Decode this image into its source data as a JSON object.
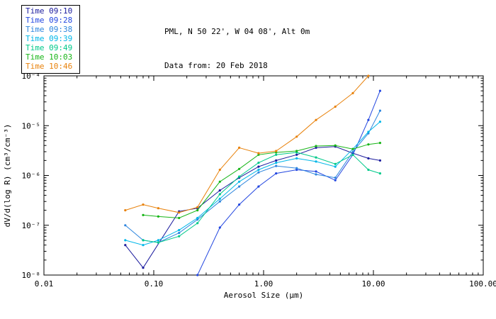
{
  "header": {
    "title_line1": "PML, N 50 22', W 04 08', Alt 0m",
    "title_line2": "Data from: 20 Feb 2018"
  },
  "chart_data": {
    "type": "line",
    "x_scale": "log",
    "y_scale": "log",
    "xlim": [
      0.01,
      100
    ],
    "ylim": [
      1e-08,
      0.0001
    ],
    "xlabel": "Aerosol Size (μm)",
    "ylabel": "dV/d(log R) (cm³/cm⁻³)",
    "x_tick_values": [
      0.01,
      0.1,
      1,
      10,
      100
    ],
    "x_tick_labels": [
      "0.01",
      "0.10",
      "1.00",
      "10.00",
      "100.00"
    ],
    "y_tick_values": [
      1e-08,
      1e-07,
      1e-06,
      1e-05,
      0.0001
    ],
    "y_tick_labels": [
      "10⁻⁸",
      "10⁻⁷",
      "10⁻⁶",
      "10⁻⁵",
      "10⁻⁴"
    ],
    "grid": false,
    "legend_position": "top-left",
    "series": [
      {
        "name": "Time 09:10",
        "color": "#1c1c9e",
        "points": [
          [
            0.055,
            4e-08
          ],
          [
            0.08,
            1.4e-08
          ],
          [
            0.17,
            1.9e-07
          ],
          [
            0.25,
            2.2e-07
          ],
          [
            0.4,
            5e-07
          ],
          [
            0.6,
            9e-07
          ],
          [
            0.9,
            1.5e-06
          ],
          [
            1.3,
            2e-06
          ],
          [
            2.0,
            2.6e-06
          ],
          [
            3.0,
            3.6e-06
          ],
          [
            4.5,
            3.8e-06
          ],
          [
            6.5,
            2.8e-06
          ],
          [
            9.0,
            2.2e-06
          ],
          [
            11.5,
            2e-06
          ]
        ]
      },
      {
        "name": "Time 09:28",
        "color": "#2347e0",
        "points": [
          [
            0.25,
            1e-08
          ],
          [
            0.4,
            9e-08
          ],
          [
            0.6,
            2.6e-07
          ],
          [
            0.9,
            6e-07
          ],
          [
            1.3,
            1.1e-06
          ],
          [
            2.0,
            1.3e-06
          ],
          [
            3.0,
            1.2e-06
          ],
          [
            4.5,
            8e-07
          ],
          [
            6.5,
            2.6e-06
          ],
          [
            9.0,
            1.3e-05
          ],
          [
            11.5,
            5e-05
          ]
        ]
      },
      {
        "name": "Time 09:38",
        "color": "#2e86de",
        "points": [
          [
            0.055,
            1e-07
          ],
          [
            0.08,
            5e-08
          ],
          [
            0.11,
            4.5e-08
          ],
          [
            0.17,
            7e-08
          ],
          [
            0.25,
            1.3e-07
          ],
          [
            0.4,
            3e-07
          ],
          [
            0.6,
            6e-07
          ],
          [
            0.9,
            1.15e-06
          ],
          [
            1.3,
            1.55e-06
          ],
          [
            2.0,
            1.4e-06
          ],
          [
            3.0,
            1.05e-06
          ],
          [
            4.5,
            9e-07
          ],
          [
            6.5,
            3e-06
          ],
          [
            9.0,
            7e-06
          ],
          [
            11.5,
            2e-05
          ]
        ]
      },
      {
        "name": "Time 09:39",
        "color": "#00b7e8",
        "points": [
          [
            0.055,
            5e-08
          ],
          [
            0.08,
            4e-08
          ],
          [
            0.11,
            5e-08
          ],
          [
            0.17,
            8e-08
          ],
          [
            0.25,
            1.4e-07
          ],
          [
            0.4,
            3.4e-07
          ],
          [
            0.6,
            7.5e-07
          ],
          [
            0.9,
            1.3e-06
          ],
          [
            1.3,
            1.8e-06
          ],
          [
            2.0,
            2.2e-06
          ],
          [
            3.0,
            1.9e-06
          ],
          [
            4.5,
            1.5e-06
          ],
          [
            6.5,
            3.4e-06
          ],
          [
            9.0,
            7.5e-06
          ],
          [
            11.5,
            1.2e-05
          ]
        ]
      },
      {
        "name": "Time 09:49",
        "color": "#00c98a",
        "points": [
          [
            0.08,
            5e-08
          ],
          [
            0.11,
            4.5e-08
          ],
          [
            0.17,
            6e-08
          ],
          [
            0.25,
            1.1e-07
          ],
          [
            0.4,
            4.2e-07
          ],
          [
            0.6,
            9.5e-07
          ],
          [
            0.9,
            1.8e-06
          ],
          [
            1.3,
            2.6e-06
          ],
          [
            2.0,
            2.9e-06
          ],
          [
            3.0,
            2.3e-06
          ],
          [
            4.5,
            1.7e-06
          ],
          [
            6.5,
            2.6e-06
          ],
          [
            9.0,
            1.3e-06
          ],
          [
            11.5,
            1.1e-06
          ]
        ]
      },
      {
        "name": "Time 10:03",
        "color": "#17b517",
        "points": [
          [
            0.08,
            1.6e-07
          ],
          [
            0.11,
            1.5e-07
          ],
          [
            0.17,
            1.4e-07
          ],
          [
            0.25,
            2e-07
          ],
          [
            0.4,
            7.5e-07
          ],
          [
            0.6,
            1.35e-06
          ],
          [
            0.9,
            2.6e-06
          ],
          [
            1.3,
            2.9e-06
          ],
          [
            2.0,
            3.1e-06
          ],
          [
            3.0,
            3.9e-06
          ],
          [
            4.5,
            4e-06
          ],
          [
            6.5,
            3.4e-06
          ],
          [
            9.0,
            4.2e-06
          ],
          [
            11.5,
            4.5e-06
          ]
        ]
      },
      {
        "name": "Time 10:46",
        "color": "#e8820c",
        "points": [
          [
            0.055,
            2e-07
          ],
          [
            0.08,
            2.6e-07
          ],
          [
            0.11,
            2.2e-07
          ],
          [
            0.17,
            1.8e-07
          ],
          [
            0.25,
            2.3e-07
          ],
          [
            0.4,
            1.3e-06
          ],
          [
            0.6,
            3.6e-06
          ],
          [
            0.9,
            2.8e-06
          ],
          [
            1.3,
            3.1e-06
          ],
          [
            2.0,
            6e-06
          ],
          [
            3.0,
            1.3e-05
          ],
          [
            4.5,
            2.4e-05
          ],
          [
            6.5,
            4.5e-05
          ],
          [
            9.0,
            0.0001
          ]
        ]
      }
    ]
  }
}
